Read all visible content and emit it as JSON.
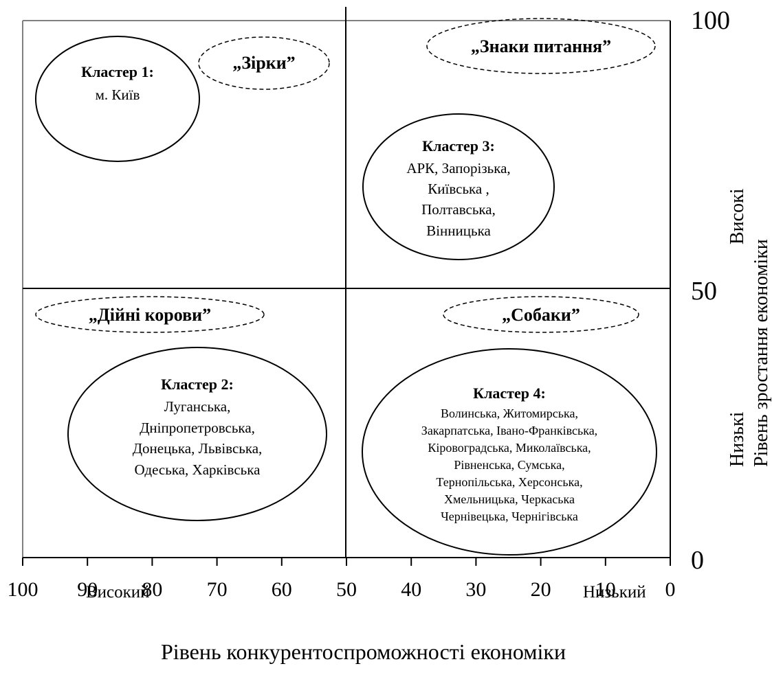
{
  "chart_data": {
    "type": "quadrant",
    "x_axis": {
      "title": "Рівень конкурентоспроможності економіки",
      "range": [
        100,
        0
      ],
      "ticks": [
        "100",
        "90",
        "80",
        "70",
        "60",
        "50",
        "40",
        "30",
        "20",
        "10",
        "0"
      ],
      "low_label": "Низький",
      "high_label": "Високий"
    },
    "y_axis": {
      "title": "Рівень зростання економіки",
      "range": [
        0,
        100
      ],
      "ticks": [
        "0",
        "50",
        "100"
      ],
      "low_label": "Низькі",
      "high_label": "Високі"
    },
    "quadrant_labels": [
      {
        "name": "„Зірки”",
        "x": 63,
        "y": 92
      },
      {
        "name": "„Знаки питання”",
        "x": 25,
        "y": 96
      },
      {
        "name": "„Дійні корови”",
        "x": 80,
        "y": 46
      },
      {
        "name": "„Собаки”",
        "x": 25,
        "y": 46
      }
    ],
    "clusters": [
      {
        "title": "Кластер 1:",
        "lines": [
          "м. Київ"
        ],
        "x": 85,
        "y": 85
      },
      {
        "title": "Кластер 3:",
        "lines": [
          "АРК, Запорізька,",
          "Київська ,",
          "Полтавська,",
          "Вінницька"
        ],
        "x": 32,
        "y": 70
      },
      {
        "title": "Кластер 2:",
        "lines": [
          "Луганська,",
          "Дніпропетровська,",
          "Донецька, Львівська,",
          "Одеська, Харківська"
        ],
        "x": 73,
        "y": 24
      },
      {
        "title": "Кластер 4:",
        "lines": [
          "Волинська, Житомирська,",
          "Закарпатська, Івано-Франківська,",
          "Кіровоградська, Миколаївська,",
          "Рівненська, Сумська,",
          "Тернопільська, Херсонська,",
          "Хмельницька, Черкаська",
          "Чернівецька, Чернігівська"
        ],
        "x": 25,
        "y": 22
      }
    ]
  }
}
